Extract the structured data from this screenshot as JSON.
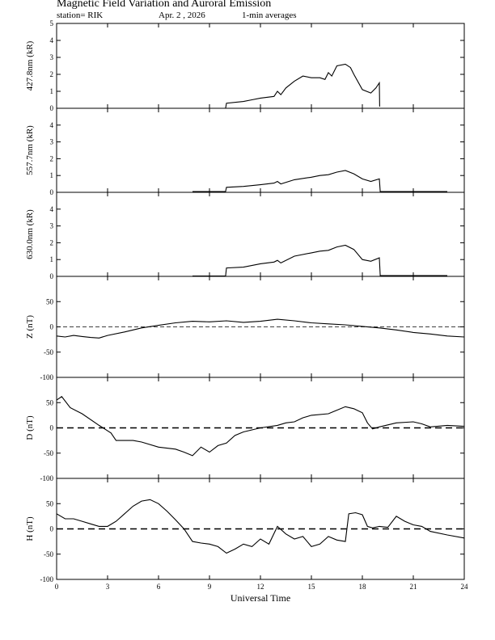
{
  "header": {
    "title": "Magnetic Field Variation and Auroral Emission",
    "station": "station= RIK",
    "date": "Apr. 2  , 2026",
    "averaging": "1-min averages"
  },
  "chart_data": [
    {
      "type": "line",
      "ylabel": "427.8nm (kR)",
      "ylim": [
        0,
        5
      ],
      "yticks": [
        0,
        1,
        2,
        3,
        4,
        5
      ],
      "x": [
        9.95,
        10,
        11,
        11.5,
        12,
        12.8,
        13,
        13.2,
        13.5,
        14,
        14.5,
        15,
        15.5,
        15.8,
        16,
        16.2,
        16.5,
        17,
        17.3,
        17.5,
        18,
        18.5,
        18.8,
        19,
        19.02
      ],
      "values": [
        0,
        0.3,
        0.4,
        0.5,
        0.6,
        0.7,
        1.0,
        0.8,
        1.2,
        1.6,
        1.9,
        1.8,
        1.8,
        1.7,
        2.1,
        1.9,
        2.5,
        2.6,
        2.4,
        2.0,
        1.1,
        0.9,
        1.2,
        1.5,
        0.1
      ]
    },
    {
      "type": "line",
      "ylabel": "557.7nm (kR)",
      "ylim": [
        0,
        5
      ],
      "yticks": [
        0,
        1,
        2,
        3,
        4
      ],
      "x": [
        8,
        9.95,
        10,
        11,
        12,
        12.8,
        13,
        13.2,
        14,
        15,
        15.5,
        16,
        16.5,
        17,
        17.5,
        18,
        18.5,
        19,
        19.05,
        23
      ],
      "values": [
        0.05,
        0.05,
        0.3,
        0.35,
        0.45,
        0.55,
        0.65,
        0.5,
        0.75,
        0.9,
        1.0,
        1.05,
        1.2,
        1.3,
        1.1,
        0.8,
        0.65,
        0.8,
        0.05,
        0.05
      ]
    },
    {
      "type": "line",
      "ylabel": "630.0nm (kR)",
      "ylim": [
        0,
        5
      ],
      "yticks": [
        0,
        1,
        2,
        3,
        4
      ],
      "x": [
        8,
        9.95,
        10,
        11,
        12,
        12.8,
        13,
        13.2,
        14,
        15,
        15.5,
        16,
        16.5,
        17,
        17.5,
        18,
        18.5,
        19,
        19.05,
        23
      ],
      "values": [
        0.02,
        0.02,
        0.5,
        0.55,
        0.75,
        0.85,
        0.95,
        0.8,
        1.2,
        1.4,
        1.5,
        1.55,
        1.75,
        1.85,
        1.6,
        1.0,
        0.9,
        1.1,
        0.05,
        0.05
      ]
    },
    {
      "type": "line",
      "ylabel": "Z (nT)",
      "ylim": [
        -100,
        100
      ],
      "yticks": [
        -100,
        -50,
        0,
        50
      ],
      "baseline": 0,
      "x": [
        0,
        0.5,
        1,
        1.5,
        2,
        2.5,
        3,
        4,
        5,
        6,
        7,
        8,
        9,
        10,
        11,
        12,
        13,
        14,
        15,
        16,
        17,
        18,
        19,
        20,
        21,
        22,
        23,
        24
      ],
      "values": [
        -18,
        -20,
        -17,
        -19,
        -21,
        -22,
        -17,
        -10,
        -2,
        3,
        8,
        11,
        10,
        12,
        9,
        11,
        15,
        12,
        8,
        6,
        4,
        1,
        -2,
        -6,
        -11,
        -14,
        -18,
        -20
      ]
    },
    {
      "type": "line",
      "ylabel": "D (nT)",
      "ylim": [
        -100,
        100
      ],
      "yticks": [
        -100,
        -50,
        0,
        50
      ],
      "baseline": 0,
      "x": [
        0,
        0.3,
        0.8,
        1.5,
        2.5,
        3.2,
        3.5,
        4.5,
        5,
        6,
        7,
        7.5,
        8,
        8.5,
        9,
        9.5,
        10,
        10.5,
        11,
        12,
        13,
        13.5,
        14,
        14.5,
        15,
        16,
        16.5,
        17,
        17.5,
        18,
        18.3,
        18.6,
        19,
        20,
        21,
        21.5,
        22,
        23,
        24
      ],
      "values": [
        55,
        62,
        40,
        28,
        5,
        -10,
        -25,
        -25,
        -28,
        -38,
        -42,
        -48,
        -55,
        -38,
        -48,
        -35,
        -30,
        -15,
        -8,
        0,
        5,
        10,
        12,
        20,
        25,
        28,
        35,
        42,
        38,
        30,
        10,
        -2,
        2,
        10,
        12,
        8,
        2,
        5,
        3
      ]
    },
    {
      "type": "line",
      "ylabel": "H (nT)",
      "ylim": [
        -100,
        100
      ],
      "yticks": [
        -100,
        -50,
        0,
        50
      ],
      "baseline": 0,
      "x": [
        0,
        0.5,
        1,
        1.5,
        2,
        2.5,
        3,
        3.5,
        4,
        4.5,
        5,
        5.5,
        6,
        6.5,
        7,
        7.5,
        8,
        8.5,
        9,
        9.5,
        10,
        10.5,
        11,
        11.5,
        12,
        12.5,
        13,
        13.5,
        14,
        14.5,
        15,
        15.5,
        16,
        16.5,
        17,
        17.2,
        17.6,
        18,
        18.3,
        18.6,
        19,
        19.5,
        20,
        20.5,
        21,
        21.5,
        22,
        23,
        24
      ],
      "values": [
        30,
        20,
        20,
        15,
        10,
        5,
        5,
        15,
        30,
        45,
        55,
        58,
        50,
        35,
        18,
        0,
        -25,
        -28,
        -30,
        -35,
        -48,
        -40,
        -30,
        -35,
        -20,
        -30,
        5,
        -10,
        -20,
        -15,
        -35,
        -30,
        -15,
        -22,
        -25,
        30,
        32,
        28,
        5,
        2,
        5,
        3,
        25,
        15,
        8,
        5,
        -5,
        -12,
        -18
      ]
    }
  ],
  "x_axis": {
    "label": "Universal Time",
    "range": [
      0,
      24
    ],
    "ticks": [
      0,
      3,
      6,
      9,
      12,
      15,
      18,
      21,
      24
    ]
  }
}
